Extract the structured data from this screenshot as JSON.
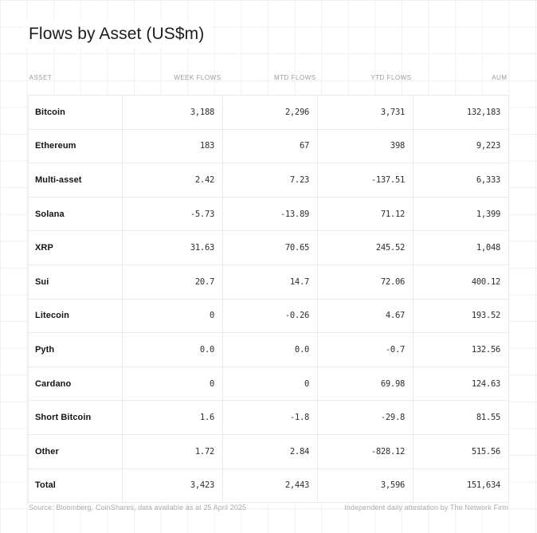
{
  "title": "Flows by Asset (US$m)",
  "table": {
    "headers": [
      "ASSET",
      "WEEK FLOWS",
      "MTD FLOWS",
      "YTD FLOWS",
      "AUM"
    ],
    "rows": [
      {
        "asset": "Bitcoin",
        "week": "3,188",
        "mtd": "2,296",
        "ytd": "3,731",
        "aum": "132,183"
      },
      {
        "asset": "Ethereum",
        "week": "183",
        "mtd": "67",
        "ytd": "398",
        "aum": "9,223"
      },
      {
        "asset": "Multi-asset",
        "week": "2.42",
        "mtd": "7.23",
        "ytd": "-137.51",
        "aum": "6,333"
      },
      {
        "asset": "Solana",
        "week": "-5.73",
        "mtd": "-13.89",
        "ytd": "71.12",
        "aum": "1,399"
      },
      {
        "asset": "XRP",
        "week": "31.63",
        "mtd": "70.65",
        "ytd": "245.52",
        "aum": "1,048"
      },
      {
        "asset": "Sui",
        "week": "20.7",
        "mtd": "14.7",
        "ytd": "72.06",
        "aum": "400.12"
      },
      {
        "asset": "Litecoin",
        "week": "0",
        "mtd": "-0.26",
        "ytd": "4.67",
        "aum": "193.52"
      },
      {
        "asset": "Pyth",
        "week": "0.0",
        "mtd": "0.0",
        "ytd": "-0.7",
        "aum": "132.56"
      },
      {
        "asset": "Cardano",
        "week": "0",
        "mtd": "0",
        "ytd": "69.98",
        "aum": "124.63"
      },
      {
        "asset": "Short Bitcoin",
        "week": "1.6",
        "mtd": "-1.8",
        "ytd": "-29.8",
        "aum": "81.55"
      },
      {
        "asset": "Other",
        "week": "1.72",
        "mtd": "2.84",
        "ytd": "-828.12",
        "aum": "515.56"
      },
      {
        "asset": "Total",
        "week": "3,423",
        "mtd": "2,443",
        "ytd": "3,596",
        "aum": "151,634"
      }
    ]
  },
  "footer": {
    "source": "Source: Bloomberg, CoinShares, data available as at 25 April 2025",
    "attestation": "Independent daily attestation by The Network Firm"
  },
  "colors": {
    "grid_line": "#efefef",
    "table_border": "#eaeaea",
    "title_text": "#1c1c1c",
    "header_text": "#9c9c9c",
    "asset_text": "#141414",
    "number_text": "#2e2e2e",
    "footer_text": "#aeaeae"
  },
  "chart_data": {
    "type": "table",
    "title": "Flows by Asset (US$m)",
    "columns": [
      "ASSET",
      "WEEK FLOWS",
      "MTD FLOWS",
      "YTD FLOWS",
      "AUM"
    ],
    "rows": [
      [
        "Bitcoin",
        3188,
        2296,
        3731,
        132183
      ],
      [
        "Ethereum",
        183,
        67,
        398,
        9223
      ],
      [
        "Multi-asset",
        2.42,
        7.23,
        -137.51,
        6333
      ],
      [
        "Solana",
        -5.73,
        -13.89,
        71.12,
        1399
      ],
      [
        "XRP",
        31.63,
        70.65,
        245.52,
        1048
      ],
      [
        "Sui",
        20.7,
        14.7,
        72.06,
        400.12
      ],
      [
        "Litecoin",
        0,
        -0.26,
        4.67,
        193.52
      ],
      [
        "Pyth",
        0.0,
        0.0,
        -0.7,
        132.56
      ],
      [
        "Cardano",
        0,
        0,
        69.98,
        124.63
      ],
      [
        "Short Bitcoin",
        1.6,
        -1.8,
        -29.8,
        81.55
      ],
      [
        "Other",
        1.72,
        2.84,
        -828.12,
        515.56
      ],
      [
        "Total",
        3423,
        2443,
        3596,
        151634
      ]
    ],
    "notes": [
      "Source: Bloomberg, CoinShares, data available as at 25 April 2025",
      "Independent daily attestation by The Network Firm"
    ]
  }
}
